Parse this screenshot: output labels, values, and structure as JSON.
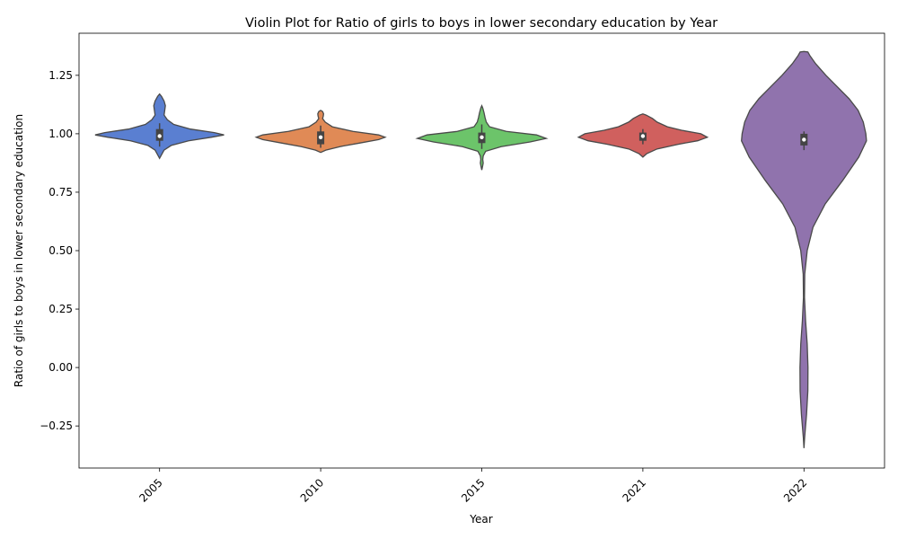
{
  "chart_data": {
    "type": "violin",
    "title": "Violin Plot for Ratio of girls to boys in lower secondary education by Year",
    "xlabel": "Year",
    "ylabel": "Ratio of girls to boys in lower secondary education",
    "categories": [
      "2005",
      "2010",
      "2015",
      "2021",
      "2022"
    ],
    "ylim": [
      -0.43,
      1.43
    ],
    "yticks": [
      -0.25,
      0.0,
      0.25,
      0.5,
      0.75,
      1.0,
      1.25
    ],
    "ytick_labels": [
      "−0.25",
      "0.00",
      "0.25",
      "0.50",
      "0.75",
      "1.00",
      "1.25"
    ],
    "grid": false,
    "colors": [
      "#5a7fd1",
      "#e08a56",
      "#6cc46a",
      "#d0605e",
      "#9073ad"
    ],
    "violins": [
      {
        "category": "2005",
        "profile": [
          [
            0.895,
            0
          ],
          [
            0.91,
            0.03
          ],
          [
            0.93,
            0.07
          ],
          [
            0.95,
            0.18
          ],
          [
            0.97,
            0.45
          ],
          [
            0.985,
            0.8
          ],
          [
            0.995,
            1.0
          ],
          [
            1.005,
            0.85
          ],
          [
            1.02,
            0.48
          ],
          [
            1.04,
            0.22
          ],
          [
            1.06,
            0.12
          ],
          [
            1.08,
            0.07
          ],
          [
            1.1,
            0.08
          ],
          [
            1.12,
            0.09
          ],
          [
            1.14,
            0.07
          ],
          [
            1.16,
            0.03
          ],
          [
            1.17,
            0
          ]
        ],
        "box": {
          "q1": 0.97,
          "median": 0.99,
          "q3": 1.02,
          "whisker_low": 0.945,
          "whisker_high": 1.045
        }
      },
      {
        "category": "2010",
        "profile": [
          [
            0.92,
            0
          ],
          [
            0.93,
            0.08
          ],
          [
            0.945,
            0.3
          ],
          [
            0.96,
            0.6
          ],
          [
            0.975,
            0.9
          ],
          [
            0.985,
            1.0
          ],
          [
            0.995,
            0.9
          ],
          [
            1.01,
            0.5
          ],
          [
            1.03,
            0.18
          ],
          [
            1.05,
            0.07
          ],
          [
            1.065,
            0.03
          ],
          [
            1.075,
            0.04
          ],
          [
            1.085,
            0.045
          ],
          [
            1.095,
            0.03
          ],
          [
            1.1,
            0
          ]
        ],
        "box": {
          "q1": 0.955,
          "median": 0.985,
          "q3": 1.01,
          "whisker_low": 0.94,
          "whisker_high": 1.035
        }
      },
      {
        "category": "2015",
        "profile": [
          [
            0.845,
            0
          ],
          [
            0.86,
            0.012
          ],
          [
            0.875,
            0.022
          ],
          [
            0.89,
            0.015
          ],
          [
            0.905,
            0.022
          ],
          [
            0.925,
            0.06
          ],
          [
            0.945,
            0.3
          ],
          [
            0.965,
            0.75
          ],
          [
            0.98,
            1.0
          ],
          [
            0.995,
            0.85
          ],
          [
            1.01,
            0.38
          ],
          [
            1.03,
            0.12
          ],
          [
            1.05,
            0.07
          ],
          [
            1.07,
            0.05
          ],
          [
            1.09,
            0.035
          ],
          [
            1.11,
            0.015
          ],
          [
            1.12,
            0
          ]
        ],
        "box": {
          "q1": 0.96,
          "median": 0.985,
          "q3": 1.005,
          "whisker_low": 0.935,
          "whisker_high": 1.04
        }
      },
      {
        "category": "2021",
        "profile": [
          [
            0.9,
            0
          ],
          [
            0.915,
            0.06
          ],
          [
            0.935,
            0.22
          ],
          [
            0.955,
            0.55
          ],
          [
            0.97,
            0.85
          ],
          [
            0.985,
            1.0
          ],
          [
            1.0,
            0.9
          ],
          [
            1.015,
            0.6
          ],
          [
            1.03,
            0.38
          ],
          [
            1.05,
            0.22
          ],
          [
            1.065,
            0.15
          ],
          [
            1.08,
            0.05
          ],
          [
            1.085,
            0
          ]
        ],
        "box": {
          "q1": 0.97,
          "median": 0.99,
          "q3": 1.005,
          "whisker_low": 0.955,
          "whisker_high": 1.02
        }
      },
      {
        "category": "2022",
        "profile": [
          [
            -0.345,
            0
          ],
          [
            -0.3,
            0.01
          ],
          [
            -0.25,
            0.025
          ],
          [
            -0.2,
            0.04
          ],
          [
            -0.1,
            0.06
          ],
          [
            0.0,
            0.062
          ],
          [
            0.1,
            0.05
          ],
          [
            0.2,
            0.025
          ],
          [
            0.3,
            0.008
          ],
          [
            0.4,
            0.012
          ],
          [
            0.5,
            0.05
          ],
          [
            0.6,
            0.14
          ],
          [
            0.7,
            0.33
          ],
          [
            0.8,
            0.6
          ],
          [
            0.9,
            0.85
          ],
          [
            0.97,
            0.97
          ],
          [
            1.0,
            0.96
          ],
          [
            1.05,
            0.92
          ],
          [
            1.1,
            0.84
          ],
          [
            1.15,
            0.7
          ],
          [
            1.2,
            0.52
          ],
          [
            1.25,
            0.34
          ],
          [
            1.3,
            0.18
          ],
          [
            1.335,
            0.09
          ],
          [
            1.35,
            0.06
          ],
          [
            1.352,
            0
          ]
        ],
        "box": {
          "q1": 0.95,
          "median": 0.975,
          "q3": 1.0,
          "whisker_low": 0.93,
          "whisker_high": 1.01
        }
      }
    ]
  }
}
